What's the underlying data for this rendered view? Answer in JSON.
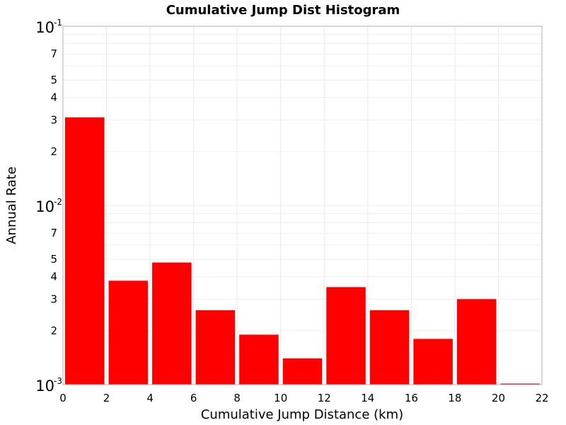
{
  "chart_data": {
    "type": "bar",
    "title": "Cumulative Jump Dist Histogram",
    "xlabel": "Cumulative Jump Distance (km)",
    "ylabel": "Annual Rate",
    "y_scale": "log",
    "xlim": [
      0,
      22
    ],
    "ylim": [
      0.001,
      0.1
    ],
    "x_ticks": [
      "0",
      "2",
      "4",
      "6",
      "8",
      "10",
      "12",
      "14",
      "16",
      "18",
      "20",
      "22"
    ],
    "y_major_ticks": [
      {
        "base": "10",
        "exponent": "-1"
      },
      {
        "base": "10",
        "exponent": "-2"
      },
      {
        "base": "10",
        "exponent": "-3"
      }
    ],
    "y_minor_tick_labels": [
      "7",
      "5",
      "4",
      "3",
      "2",
      "7",
      "5",
      "4",
      "3",
      "2"
    ],
    "bar_color": "#ff0000",
    "grid": true,
    "bins": [
      {
        "x_start": 0,
        "x_end": 2,
        "value": 0.031
      },
      {
        "x_start": 2,
        "x_end": 4,
        "value": 0.0038
      },
      {
        "x_start": 4,
        "x_end": 6,
        "value": 0.0048
      },
      {
        "x_start": 6,
        "x_end": 8,
        "value": 0.0026
      },
      {
        "x_start": 8,
        "x_end": 10,
        "value": 0.0019
      },
      {
        "x_start": 10,
        "x_end": 12,
        "value": 0.0014
      },
      {
        "x_start": 12,
        "x_end": 14,
        "value": 0.0035
      },
      {
        "x_start": 14,
        "x_end": 16,
        "value": 0.0026
      },
      {
        "x_start": 16,
        "x_end": 18,
        "value": 0.0018
      },
      {
        "x_start": 18,
        "x_end": 20,
        "value": 0.003
      },
      {
        "x_start": 20,
        "x_end": 22,
        "value": 0.001
      }
    ]
  }
}
